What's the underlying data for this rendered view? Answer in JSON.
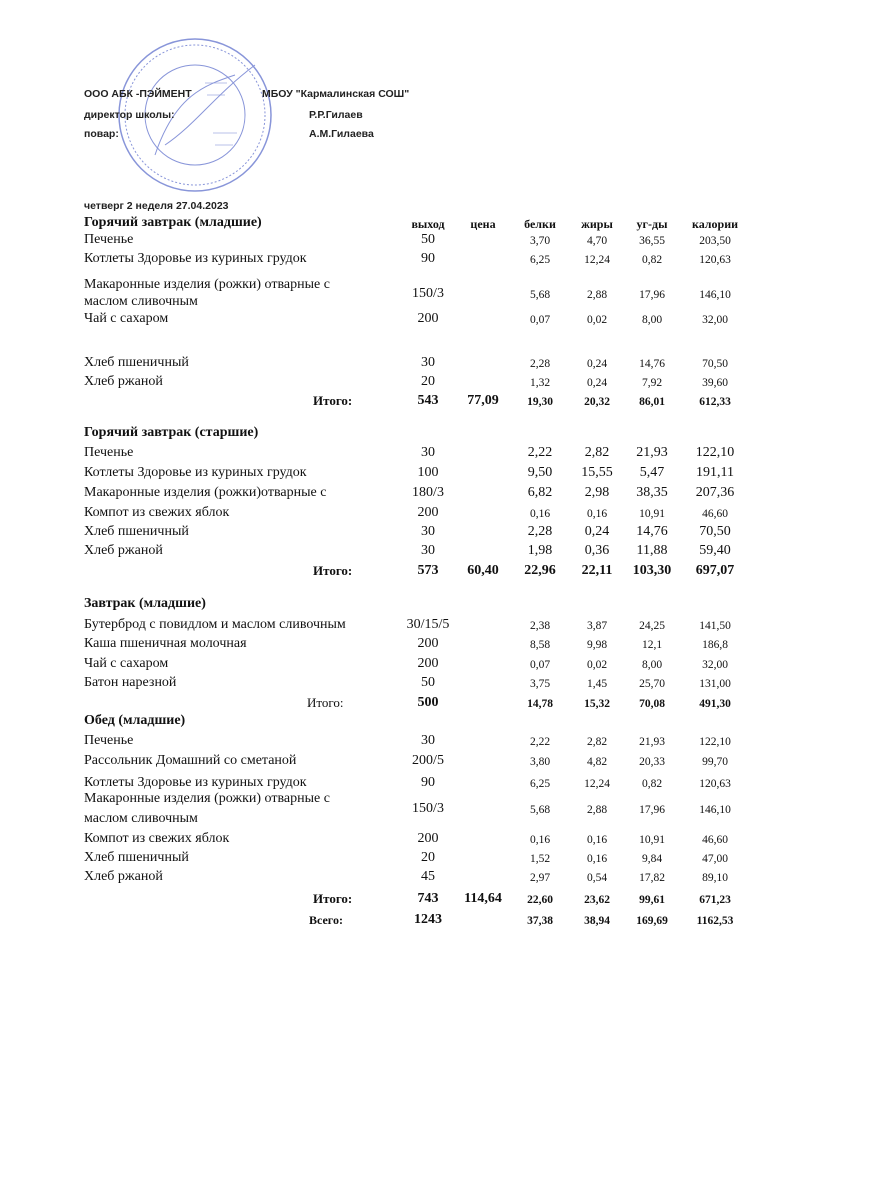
{
  "header": {
    "org": "ООО АБК -ПЭЙМЕНТ",
    "school": "МБОУ \"Кармалинская СОШ\"",
    "director_label": "директор школы:",
    "director_name": "Р.Р.Гилаев",
    "cook_label": "повар:",
    "cook_name": "А.М.Гилаева",
    "date_line": "четверг 2 неделя  27.04.2023"
  },
  "stamp": {
    "text": "Муниципальное бюджетное общеобразовательное учреждение Кармалинская средняя общеобразовательная школа Нижнекамского муниципального района Республики Татарстан",
    "color": "#3a4fc0"
  },
  "columns": [
    "выход",
    "цена",
    "белки",
    "жиры",
    "уг-ды",
    "калории"
  ],
  "sections": [
    {
      "title": "Горячий завтрак (младшие)",
      "rows": [
        {
          "name": "Печенье",
          "values": [
            "50",
            "",
            "3,70",
            "4,70",
            "36,55",
            "203,50"
          ]
        },
        {
          "name": "Котлеты Здоровье из куриных грудок",
          "values": [
            "90",
            "",
            "6,25",
            "12,24",
            "0,82",
            "120,63"
          ]
        },
        {
          "name": "Макаронные изделия (рожки) отварные с",
          "name2": "маслом сливочным",
          "values": [
            "150/3",
            "",
            "5,68",
            "2,88",
            "17,96",
            "146,10"
          ]
        },
        {
          "name": "Чай с сахаром",
          "values": [
            "200",
            "",
            "0,07",
            "0,02",
            "8,00",
            "32,00"
          ]
        },
        {
          "name": "Хлеб пшеничный",
          "values": [
            "30",
            "",
            "2,28",
            "0,24",
            "14,76",
            "70,50"
          ]
        },
        {
          "name": "Хлеб ржаной",
          "values": [
            "20",
            "",
            "1,32",
            "0,24",
            "7,92",
            "39,60"
          ]
        }
      ],
      "total": {
        "label": "Итого:",
        "values": [
          "543",
          "77,09",
          "19,30",
          "20,32",
          "86,01",
          "612,33"
        ]
      }
    },
    {
      "title": "Горячий завтрак (старшие)",
      "rows": [
        {
          "name": "Печенье",
          "values": [
            "30",
            "",
            "2,22",
            "2,82",
            "21,93",
            "122,10"
          ]
        },
        {
          "name": "Котлеты Здоровье из куриных грудок",
          "values": [
            "100",
            "",
            "9,50",
            "15,55",
            "5,47",
            "191,11"
          ]
        },
        {
          "name": "Макаронные изделия (рожки)отварные с",
          "values": [
            "180/3",
            "",
            "6,82",
            "2,98",
            "38,35",
            "207,36"
          ]
        },
        {
          "name": "Компот из свежих яблок",
          "values": [
            "200",
            "",
            "0,16",
            "0,16",
            "10,91",
            "46,60"
          ]
        },
        {
          "name": "Хлеб пшеничный",
          "values": [
            "30",
            "",
            "2,28",
            "0,24",
            "14,76",
            "70,50"
          ]
        },
        {
          "name": "Хлеб ржаной",
          "values": [
            "30",
            "",
            "1,98",
            "0,36",
            "11,88",
            "59,40"
          ]
        }
      ],
      "total": {
        "label": "Итого:",
        "values": [
          "573",
          "60,40",
          "22,96",
          "22,11",
          "103,30",
          "697,07"
        ]
      }
    },
    {
      "title": "Завтрак (младшие)",
      "rows": [
        {
          "name": "Бутерброд с повидлом и маслом сливочным",
          "values": [
            "30/15/5",
            "",
            "2,38",
            "3,87",
            "24,25",
            "141,50"
          ]
        },
        {
          "name": "Каша пшеничная  молочная",
          "values": [
            "200",
            "",
            "8,58",
            "9,98",
            "12,1",
            "186,8"
          ]
        },
        {
          "name": "Чай с сахаром",
          "values": [
            "200",
            "",
            "0,07",
            "0,02",
            "8,00",
            "32,00"
          ]
        },
        {
          "name": "Батон нарезной",
          "values": [
            "50",
            "",
            "3,75",
            "1,45",
            "25,70",
            "131,00"
          ]
        }
      ],
      "total": {
        "label": "Итого:",
        "values": [
          "500",
          "",
          "14,78",
          "15,32",
          "70,08",
          "491,30"
        ]
      }
    },
    {
      "title": "Обед (младшие)",
      "rows": [
        {
          "name": "Печенье",
          "values": [
            "30",
            "",
            "2,22",
            "2,82",
            "21,93",
            "122,10"
          ]
        },
        {
          "name": "Рассольник Домашний  со сметаной",
          "values": [
            "200/5",
            "",
            "3,80",
            "4,82",
            "20,33",
            "99,70"
          ]
        },
        {
          "name": "Котлеты Здоровье из куриных грудок",
          "values": [
            "90",
            "",
            "6,25",
            "12,24",
            "0,82",
            "120,63"
          ]
        },
        {
          "name": "Макаронные изделия (рожки) отварные с",
          "name2": "маслом сливочным",
          "values": [
            "150/3",
            "",
            "5,68",
            "2,88",
            "17,96",
            "146,10"
          ]
        },
        {
          "name": "Компот из свежих яблок",
          "values": [
            "200",
            "",
            "0,16",
            "0,16",
            "10,91",
            "46,60"
          ]
        },
        {
          "name": "Хлеб пшеничный",
          "values": [
            "20",
            "",
            "1,52",
            "0,16",
            "9,84",
            "47,00"
          ]
        },
        {
          "name": "Хлеб ржаной",
          "values": [
            "45",
            "",
            "2,97",
            "0,54",
            "17,82",
            "89,10"
          ]
        }
      ],
      "total": {
        "label": "Итого:",
        "values": [
          "743",
          "114,64",
          "22,60",
          "23,62",
          "99,61",
          "671,23"
        ]
      }
    }
  ],
  "grand_total": {
    "label": "Всего:",
    "values": [
      "1243",
      "",
      "37,38",
      "38,94",
      "169,69",
      "1162,53"
    ]
  }
}
